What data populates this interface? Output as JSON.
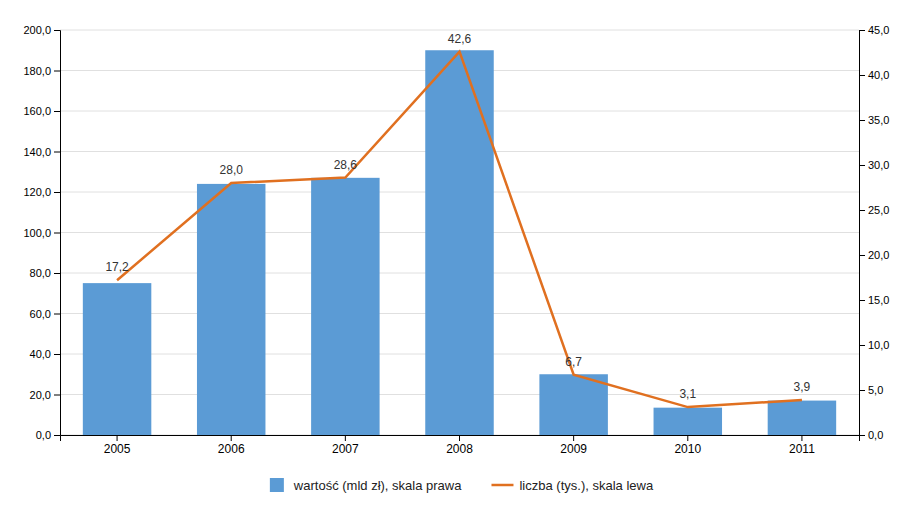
{
  "chart_data": {
    "type": "bar",
    "categories": [
      "2005",
      "2006",
      "2007",
      "2008",
      "2009",
      "2010",
      "2011"
    ],
    "series": [
      {
        "name": "wartość (mld zł), skala prawa",
        "type": "bar",
        "color": "#5B9BD5",
        "values": [
          75.0,
          124.0,
          127.0,
          190.0,
          30.0,
          13.5,
          17.0
        ]
      },
      {
        "name": "liczba (tys.), skala lewa",
        "type": "line",
        "color": "#E07020",
        "axis": "y2",
        "data_labels": true,
        "values": [
          17.2,
          28.0,
          28.6,
          42.6,
          6.7,
          3.1,
          3.9
        ],
        "value_labels": [
          "17,2",
          "28,0",
          "28,6",
          "42,6",
          "6,7",
          "3,1",
          "3,9"
        ]
      }
    ],
    "ylim": [
      0,
      200
    ],
    "yticks": [
      {
        "value": 0,
        "label": "0,0"
      },
      {
        "value": 20,
        "label": "20,0"
      },
      {
        "value": 40,
        "label": "40,0"
      },
      {
        "value": 60,
        "label": "60,0"
      },
      {
        "value": 80,
        "label": "80,0"
      },
      {
        "value": 100,
        "label": "100,0"
      },
      {
        "value": 120,
        "label": "120,0"
      },
      {
        "value": 140,
        "label": "140,0"
      },
      {
        "value": 160,
        "label": "160,0"
      },
      {
        "value": 180,
        "label": "180,0"
      },
      {
        "value": 200,
        "label": "200,0"
      }
    ],
    "y2lim": [
      0,
      45
    ],
    "y2ticks": [
      {
        "value": 0,
        "label": "0,0"
      },
      {
        "value": 5,
        "label": "5,0"
      },
      {
        "value": 10,
        "label": "10,0"
      },
      {
        "value": 15,
        "label": "15,0"
      },
      {
        "value": 20,
        "label": "20,0"
      },
      {
        "value": 25,
        "label": "25,0"
      },
      {
        "value": 30,
        "label": "30,0"
      },
      {
        "value": 35,
        "label": "35,0"
      },
      {
        "value": 40,
        "label": "40,0"
      },
      {
        "value": 45,
        "label": "45,0"
      }
    ],
    "grid": true,
    "legend": "bottom"
  }
}
